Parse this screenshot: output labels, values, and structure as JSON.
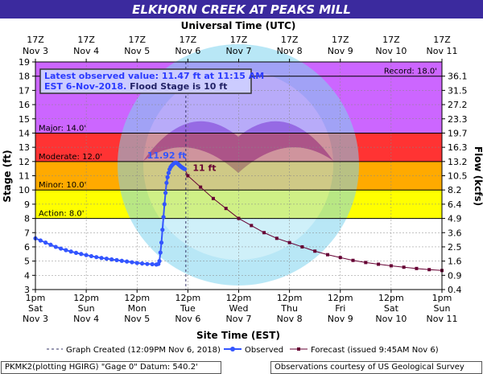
{
  "chart_data": {
    "type": "line",
    "title": "ELKHORN CREEK AT PEAKS MILL",
    "top_axis_title": "Universal Time (UTC)",
    "bottom_axis_title": "Site Time (EST)",
    "ylabel": "Stage (ft)",
    "ylabel_right": "Flow (kcfs)",
    "ylim": [
      3,
      19
    ],
    "y_ticks": [
      3,
      4,
      5,
      6,
      7,
      8,
      9,
      10,
      11,
      12,
      13,
      14,
      15,
      16,
      17,
      18,
      19
    ],
    "right_ticks": [
      {
        "stage": 3,
        "label": "0.4"
      },
      {
        "stage": 4,
        "label": "0.9"
      },
      {
        "stage": 5,
        "label": "1.6"
      },
      {
        "stage": 6,
        "label": "2.5"
      },
      {
        "stage": 7,
        "label": "3.6"
      },
      {
        "stage": 8,
        "label": "4.9"
      },
      {
        "stage": 9,
        "label": "6.4"
      },
      {
        "stage": 10,
        "label": "8.2"
      },
      {
        "stage": 11,
        "label": "10.5"
      },
      {
        "stage": 12,
        "label": "13.2"
      },
      {
        "stage": 13,
        "label": "16.3"
      },
      {
        "stage": 14,
        "label": "19.7"
      },
      {
        "stage": 15,
        "label": "23.3"
      },
      {
        "stage": 16,
        "label": "27.2"
      },
      {
        "stage": 17,
        "label": "31.5"
      },
      {
        "stage": 18,
        "label": "36.1"
      }
    ],
    "xlim": [
      "Nov 3 1pm",
      "Nov 11 1pm"
    ],
    "bottom_ticks": [
      {
        "line1": "1pm",
        "line2": "Sat",
        "line3": "Nov 3"
      },
      {
        "line1": "12pm",
        "line2": "Sun",
        "line3": "Nov 4"
      },
      {
        "line1": "12pm",
        "line2": "Mon",
        "line3": "Nov 5"
      },
      {
        "line1": "12pm",
        "line2": "Tue",
        "line3": "Nov 6"
      },
      {
        "line1": "12pm",
        "line2": "Wed",
        "line3": "Nov 7"
      },
      {
        "line1": "12pm",
        "line2": "Thu",
        "line3": "Nov 8"
      },
      {
        "line1": "12pm",
        "line2": "Fri",
        "line3": "Nov 9"
      },
      {
        "line1": "12pm",
        "line2": "Sat",
        "line3": "Nov 10"
      },
      {
        "line1": "1pm",
        "line2": "Sun",
        "line3": "Nov 11"
      }
    ],
    "top_ticks": [
      {
        "line1": "17Z",
        "line2": "Nov 3"
      },
      {
        "line1": "17Z",
        "line2": "Nov 4"
      },
      {
        "line1": "17Z",
        "line2": "Nov 5"
      },
      {
        "line1": "17Z",
        "line2": "Nov 6"
      },
      {
        "line1": "17Z",
        "line2": "Nov 7"
      },
      {
        "line1": "17Z",
        "line2": "Nov 8"
      },
      {
        "line1": "17Z",
        "line2": "Nov 9"
      },
      {
        "line1": "17Z",
        "line2": "Nov 10"
      },
      {
        "line1": "17Z",
        "line2": "Nov 11"
      }
    ],
    "bands": [
      {
        "from": 3,
        "to": 8,
        "color": "#ffffff"
      },
      {
        "from": 8,
        "to": 10,
        "color": "#ffff00"
      },
      {
        "from": 10,
        "to": 12,
        "color": "#ffaa00"
      },
      {
        "from": 12,
        "to": 14,
        "color": "#ff3333"
      },
      {
        "from": 14,
        "to": 19,
        "color": "#cc66ff"
      }
    ],
    "thresholds": [
      {
        "label": "Action: 8.0'",
        "value": 8
      },
      {
        "label": "Minor: 10.0'",
        "value": 10
      },
      {
        "label": "Moderate: 12.0'",
        "value": 12
      },
      {
        "label": "Major: 14.0'",
        "value": 14
      }
    ],
    "record": {
      "label": "Record: 18.0'",
      "value": 18
    },
    "info_box": {
      "line1": "Latest observed value: 11.47 ft at 11:15 AM",
      "line2_blue": "EST 6-Nov-2018.",
      "line2_dark": " Flood Stage is 10 ft"
    },
    "crest_label": {
      "text": "11.92 ft",
      "day": 2.9,
      "stage": 11.92
    },
    "forecast_label": {
      "text": "11 ft",
      "day": 3.0,
      "stage": 11.0
    },
    "graph_created_day": 2.96,
    "observed": {
      "name": "Observed",
      "points": [
        [
          0,
          6.6
        ],
        [
          0.1,
          6.45
        ],
        [
          0.2,
          6.3
        ],
        [
          0.3,
          6.15
        ],
        [
          0.4,
          6.0
        ],
        [
          0.5,
          5.88
        ],
        [
          0.6,
          5.77
        ],
        [
          0.7,
          5.67
        ],
        [
          0.8,
          5.58
        ],
        [
          0.9,
          5.5
        ],
        [
          1.0,
          5.42
        ],
        [
          1.1,
          5.35
        ],
        [
          1.2,
          5.28
        ],
        [
          1.3,
          5.22
        ],
        [
          1.4,
          5.17
        ],
        [
          1.5,
          5.12
        ],
        [
          1.6,
          5.07
        ],
        [
          1.7,
          5.02
        ],
        [
          1.8,
          4.97
        ],
        [
          1.9,
          4.92
        ],
        [
          2.0,
          4.87
        ],
        [
          2.1,
          4.83
        ],
        [
          2.2,
          4.8
        ],
        [
          2.3,
          4.78
        ],
        [
          2.38,
          4.76
        ],
        [
          2.42,
          4.8
        ],
        [
          2.44,
          5.0
        ],
        [
          2.46,
          5.6
        ],
        [
          2.48,
          6.3
        ],
        [
          2.5,
          7.2
        ],
        [
          2.52,
          8.1
        ],
        [
          2.54,
          9.0
        ],
        [
          2.56,
          9.8
        ],
        [
          2.58,
          10.5
        ],
        [
          2.6,
          10.9
        ],
        [
          2.62,
          11.2
        ],
        [
          2.64,
          11.45
        ],
        [
          2.66,
          11.6
        ],
        [
          2.68,
          11.7
        ],
        [
          2.7,
          11.78
        ],
        [
          2.72,
          11.85
        ],
        [
          2.74,
          11.9
        ],
        [
          2.76,
          11.92
        ],
        [
          2.78,
          11.9
        ],
        [
          2.8,
          11.85
        ],
        [
          2.82,
          11.78
        ],
        [
          2.84,
          11.72
        ],
        [
          2.86,
          11.65
        ],
        [
          2.88,
          11.6
        ],
        [
          2.9,
          11.55
        ],
        [
          2.92,
          11.5
        ],
        [
          2.94,
          11.47
        ]
      ]
    },
    "forecast": {
      "name": "Forecast (issued 9:45AM Nov 6)",
      "points": [
        [
          2.94,
          11.47
        ],
        [
          3.0,
          11.0
        ],
        [
          3.25,
          10.2
        ],
        [
          3.5,
          9.4
        ],
        [
          3.75,
          8.7
        ],
        [
          4.0,
          8.0
        ],
        [
          4.25,
          7.5
        ],
        [
          4.5,
          7.0
        ],
        [
          4.75,
          6.6
        ],
        [
          5.0,
          6.3
        ],
        [
          5.25,
          6.0
        ],
        [
          5.5,
          5.7
        ],
        [
          5.75,
          5.45
        ],
        [
          6.0,
          5.25
        ],
        [
          6.25,
          5.05
        ],
        [
          6.5,
          4.9
        ],
        [
          6.75,
          4.78
        ],
        [
          7.0,
          4.67
        ],
        [
          7.25,
          4.57
        ],
        [
          7.5,
          4.48
        ],
        [
          7.75,
          4.4
        ],
        [
          8.0,
          4.34
        ]
      ]
    },
    "legend": {
      "created": "Graph Created (12:09PM Nov 6, 2018)",
      "observed": "Observed",
      "forecast": "Forecast (issued 9:45AM Nov 6)"
    },
    "footer_left": "PKMK2(plotting HGIRG) \"Gage 0\" Datum:  540.2'",
    "footer_right": "Observations courtesy of US Geological Survey",
    "colors": {
      "title_bg": "#3b2a9e",
      "observed": "#3355ff",
      "forecast": "#660033",
      "info_blue": "#2a3aff",
      "info_dark": "#222266"
    }
  }
}
